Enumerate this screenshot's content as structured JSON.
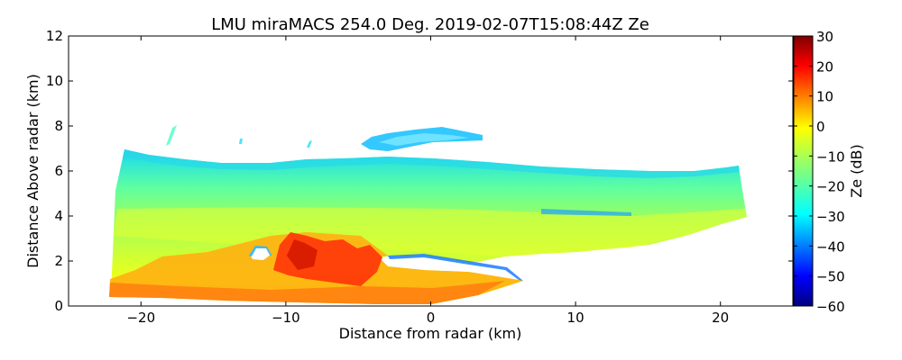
{
  "chart_data": {
    "type": "heatmap",
    "title": "LMU miraMACS 254.0 Deg. 2019-02-07T15:08:44Z  Ze",
    "xlabel": "Distance from radar (km)",
    "ylabel": "Distance Above radar  (km)",
    "xlim": [
      -25,
      25
    ],
    "ylim": [
      0,
      12
    ],
    "xticks": [
      -20,
      -10,
      0,
      10,
      20
    ],
    "xtick_labels": [
      "−20",
      "−10",
      "0",
      "10",
      "20"
    ],
    "yticks": [
      0,
      2,
      4,
      6,
      8,
      10,
      12
    ],
    "ytick_labels": [
      "0",
      "2",
      "4",
      "6",
      "8",
      "10",
      "12"
    ],
    "colorbar": {
      "label": "Ze (dB)",
      "range": [
        -60,
        30
      ],
      "ticks": [
        30,
        20,
        10,
        0,
        -10,
        -20,
        -30,
        -40,
        -50,
        -60
      ],
      "tick_labels": [
        "30",
        "20",
        "10",
        "0",
        "−10",
        "−20",
        "−30",
        "−40",
        "−50",
        "−60"
      ],
      "colormap": "jet"
    },
    "scan": {
      "azimuth_deg": 254.0,
      "x_extent_km": [
        -22,
        22
      ],
      "top_height_km": [
        7.0,
        6.3
      ]
    },
    "regions": [
      {
        "name": "main-echo",
        "x_range_km": [
          -22,
          22
        ],
        "z_range_km": [
          0,
          7
        ],
        "ze_typical_db": -15
      },
      {
        "name": "upper-cloud-layer",
        "x_range_km": [
          -5,
          4
        ],
        "z_range_km": [
          6.8,
          7.8
        ],
        "ze_typical_db": -28
      },
      {
        "name": "melting-layer-bright-band",
        "x_range_km": [
          -22,
          5
        ],
        "z_range_km": [
          0,
          3.2
        ],
        "ze_typical_db": 5
      },
      {
        "name": "strong-core",
        "x_range_km": [
          -11,
          -4
        ],
        "z_range_km": [
          1,
          3.2
        ],
        "ze_typical_db": 15
      }
    ]
  }
}
